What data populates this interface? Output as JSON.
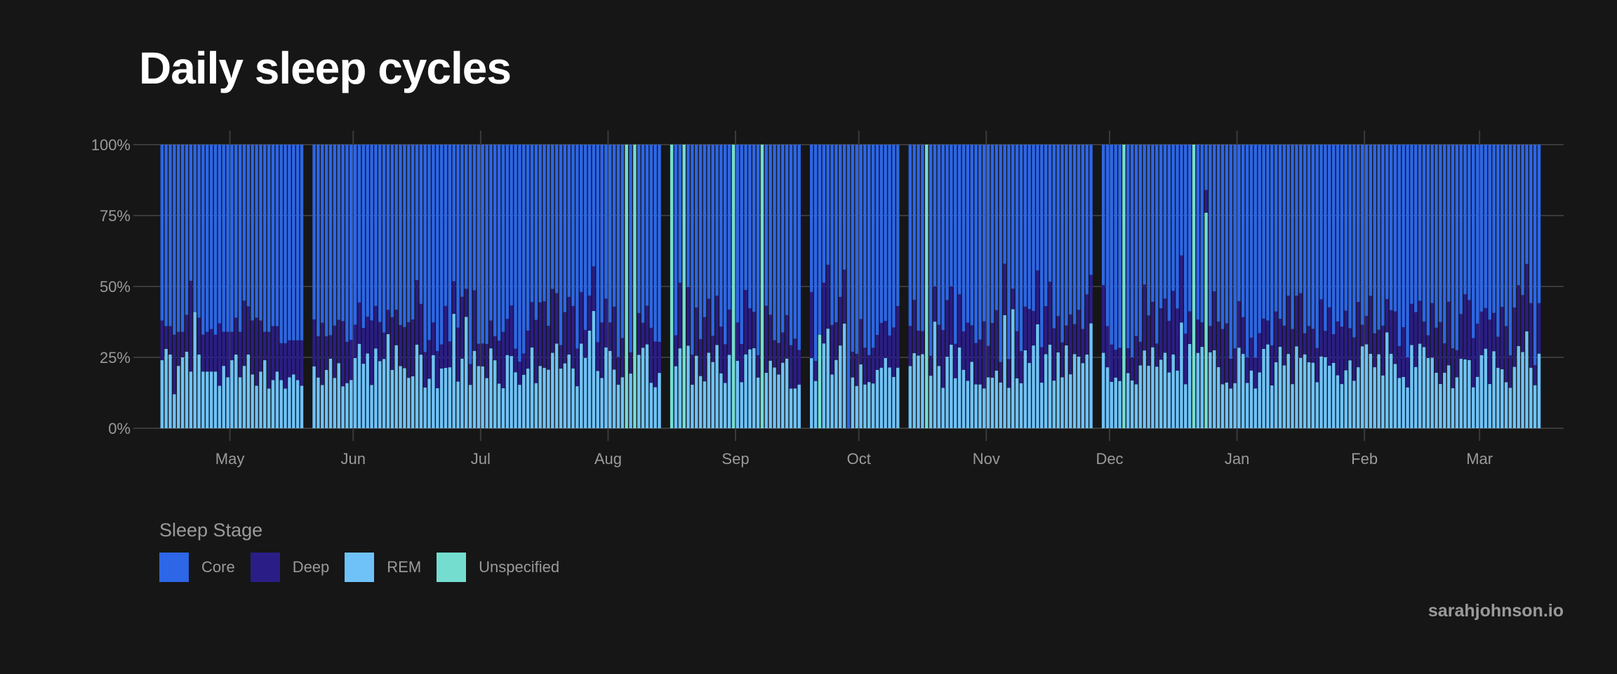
{
  "title": "Daily sleep cycles",
  "credit": "sarahjohnson.io",
  "legend": {
    "title": "Sleep Stage",
    "items": [
      {
        "label": "Core",
        "color": "#2d66e6"
      },
      {
        "label": "Deep",
        "color": "#2a1d86"
      },
      {
        "label": "REM",
        "color": "#6fc2f8"
      },
      {
        "label": "Unspecified",
        "color": "#74ddd0"
      }
    ]
  },
  "chart_data": {
    "type": "bar",
    "stacked": "percent",
    "title": "Daily sleep cycles",
    "xlabel": "",
    "ylabel": "",
    "ylim": [
      0,
      1
    ],
    "y_ticks": [
      "0%",
      "25%",
      "50%",
      "75%",
      "100%"
    ],
    "x_ticks": [
      "May",
      "Jun",
      "Jul",
      "Aug",
      "Sep",
      "Oct",
      "Nov",
      "Dec",
      "Jan",
      "Feb",
      "Mar"
    ],
    "x_tick_days": [
      17,
      47,
      78,
      109,
      140,
      170,
      201,
      231,
      262,
      293,
      321
    ],
    "x_range_days": [
      0,
      336
    ],
    "stack_order_bottom_to_top": [
      "REM",
      "Unspecified",
      "Deep",
      "Core"
    ],
    "series_colors": {
      "Core": "#2d66e6",
      "Deep": "#2a1d86",
      "REM": "#6fc2f8",
      "Unspecified": "#74ddd0"
    },
    "gaps": [
      [
        35,
        36
      ],
      [
        122,
        123
      ],
      [
        156,
        157
      ],
      [
        180,
        181
      ],
      [
        227,
        228
      ],
      [
        338,
        339
      ]
    ],
    "bar_overrides": [
      {
        "day": 8,
        "rem": 0.41,
        "uns": 0.0,
        "deep": 0.0
      },
      {
        "day": 113,
        "rem": 0.0,
        "uns": 1.0,
        "deep": 0.0
      },
      {
        "day": 115,
        "rem": 0.0,
        "uns": 1.0,
        "deep": 0.0
      },
      {
        "day": 124,
        "rem": 0.0,
        "uns": 1.0,
        "deep": 0.0
      },
      {
        "day": 127,
        "rem": 0.0,
        "uns": 1.0,
        "deep": 0.0
      },
      {
        "day": 139,
        "rem": 0.0,
        "uns": 1.0,
        "deep": 0.0
      },
      {
        "day": 146,
        "rem": 0.0,
        "uns": 1.0,
        "deep": 0.0
      },
      {
        "day": 186,
        "rem": 0.0,
        "uns": 1.0,
        "deep": 0.0
      },
      {
        "day": 234,
        "rem": 0.0,
        "uns": 1.0,
        "deep": 0.0
      },
      {
        "day": 251,
        "rem": 0.0,
        "uns": 1.0,
        "deep": 0.0
      },
      {
        "day": 254,
        "rem": 0.0,
        "uns": 0.76,
        "deep": 0.08
      },
      {
        "day": 160,
        "rem": 0.0,
        "uns": 0.33,
        "deep": 0.0
      },
      {
        "day": 167,
        "rem": 0.0,
        "uns": 0.0,
        "deep": 0.0
      }
    ],
    "series": [
      {
        "name": "REM",
        "values_by_day_sample": [
          0.24,
          0.28,
          0.26,
          0.12,
          0.22,
          0.25,
          0.27,
          0.2,
          0.41,
          0.26,
          0.2,
          0.2,
          0.2,
          0.2,
          0.15,
          0.22,
          0.18,
          0.24,
          0.26,
          0.18,
          0.22,
          0.26,
          0.19,
          0.15,
          0.2,
          0.24,
          0.14,
          0.17,
          0.2,
          0.17,
          0.14,
          0.18,
          0.19,
          0.17,
          0.15
        ],
        "note": "daily REM share, light-blue segment at bottom"
      },
      {
        "name": "Deep",
        "values_by_day_sample": [
          0.14,
          0.08,
          0.1,
          0.21,
          0.12,
          0.09,
          0.13,
          0.32,
          0.0,
          0.13,
          0.13,
          0.14,
          0.15,
          0.13,
          0.22,
          0.12,
          0.16,
          0.1,
          0.13,
          0.16,
          0.23,
          0.17,
          0.19,
          0.24,
          0.18,
          0.1,
          0.2,
          0.19,
          0.16,
          0.13,
          0.16,
          0.13,
          0.12,
          0.14,
          0.16
        ],
        "note": "daily Deep share, dark-indigo segment above REM"
      },
      {
        "name": "Core",
        "note": "remainder up to 100%"
      }
    ]
  }
}
